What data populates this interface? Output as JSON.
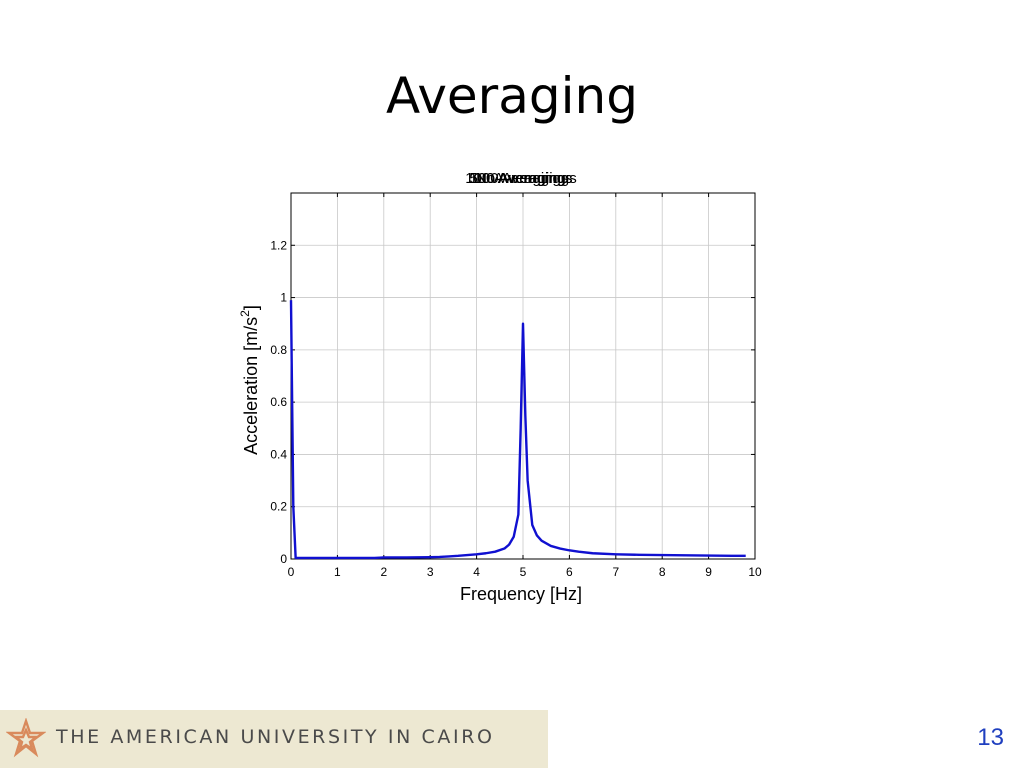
{
  "slide": {
    "title": "Averaging",
    "page_number": "13"
  },
  "footer": {
    "institution": "THE AMERICAN UNIVERSITY IN CAIRO",
    "logo_icon": "auc-star-logo",
    "banner_color": "#ede8d2",
    "text_color": "#4a4a4a",
    "page_number_color": "#1f3fbf"
  },
  "chart_data": {
    "type": "line",
    "overlapping_titles": [
      "1000 Averagings",
      "500 Averagings",
      "100 Averagings",
      "10 Averagings",
      "No Averaging"
    ],
    "xlabel": "Frequency [Hz]",
    "ylabel": "Acceleration [m/s",
    "ylabel_superscript": "2",
    "ylabel_suffix": "]",
    "xlim": [
      0,
      10
    ],
    "ylim": [
      0,
      1.4
    ],
    "xticks": [
      0,
      1,
      2,
      3,
      4,
      5,
      6,
      7,
      8,
      9,
      10
    ],
    "yticks": [
      0,
      0.2,
      0.4,
      0.6,
      0.8,
      1,
      1.2
    ],
    "ytick_labels": [
      "0",
      "0.2",
      "0.4",
      "0.6",
      "0.8",
      "1",
      "1.2"
    ],
    "grid": true,
    "line_color": "#1010d0",
    "series": [
      {
        "x": [
          0,
          0.05,
          0.1,
          0.2,
          0.5,
          1,
          1.5,
          1.8,
          2,
          2.5,
          3,
          3.2,
          3.4,
          3.6,
          3.8,
          4,
          4.2,
          4.4,
          4.6,
          4.7,
          4.8,
          4.9,
          4.95,
          5.0,
          5.05,
          5.1,
          5.2,
          5.3,
          5.4,
          5.6,
          5.8,
          6,
          6.2,
          6.5,
          7,
          7.5,
          8,
          8.5,
          9,
          9.5,
          9.8
        ],
        "y": [
          0.99,
          0.2,
          0.004,
          0.004,
          0.004,
          0.004,
          0.004,
          0.004,
          0.006,
          0.006,
          0.007,
          0.008,
          0.01,
          0.012,
          0.015,
          0.018,
          0.022,
          0.028,
          0.04,
          0.055,
          0.085,
          0.17,
          0.5,
          0.9,
          0.55,
          0.3,
          0.13,
          0.09,
          0.07,
          0.05,
          0.04,
          0.033,
          0.028,
          0.022,
          0.018,
          0.016,
          0.015,
          0.014,
          0.013,
          0.012,
          0.012
        ]
      }
    ]
  }
}
